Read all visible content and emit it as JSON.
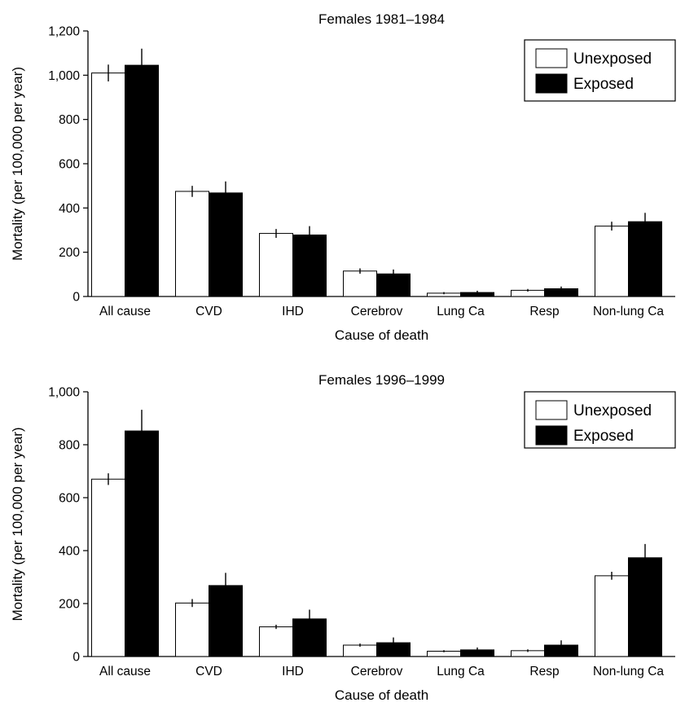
{
  "colors": {
    "unexposed": "#ffffff",
    "exposed": "#000000",
    "axis": "#000000"
  },
  "chart_data": [
    {
      "type": "bar",
      "title": "Females 1981–1984",
      "xlabel": "Cause of death",
      "ylabel": "Mortality (per 100,000 per year)",
      "ylim": [
        0,
        1200
      ],
      "yticks": [
        0,
        200,
        400,
        600,
        800,
        1000,
        1200
      ],
      "ytick_labels": [
        "0",
        "200",
        "400",
        "600",
        "800",
        "1,000",
        "1,200"
      ],
      "grid": false,
      "legend_position": "top-right",
      "categories": [
        "All cause",
        "CVD",
        "IHD",
        "Cerebrov",
        "Lung Ca",
        "Resp",
        "Non-lung Ca"
      ],
      "series": [
        {
          "name": "Unexposed",
          "values": [
            1010,
            475,
            285,
            115,
            15,
            28,
            318
          ],
          "error": [
            38,
            25,
            20,
            12,
            5,
            6,
            20
          ]
        },
        {
          "name": "Exposed",
          "values": [
            1045,
            468,
            278,
            102,
            18,
            35,
            338
          ],
          "error": [
            75,
            52,
            40,
            20,
            8,
            10,
            40
          ]
        }
      ]
    },
    {
      "type": "bar",
      "title": "Females 1996–1999",
      "xlabel": "Cause of death",
      "ylabel": "Mortality (per 100,000 per year)",
      "ylim": [
        0,
        1000
      ],
      "yticks": [
        0,
        200,
        400,
        600,
        800,
        1000
      ],
      "ytick_labels": [
        "0",
        "200",
        "400",
        "600",
        "800",
        "1,000"
      ],
      "grid": false,
      "legend_position": "top-right",
      "categories": [
        "All cause",
        "CVD",
        "IHD",
        "Cerebrov",
        "Lung Ca",
        "Resp",
        "Non-lung Ca"
      ],
      "series": [
        {
          "name": "Unexposed",
          "values": [
            670,
            202,
            112,
            43,
            20,
            22,
            305
          ],
          "error": [
            22,
            15,
            8,
            6,
            4,
            5,
            15
          ]
        },
        {
          "name": "Exposed",
          "values": [
            852,
            268,
            142,
            52,
            25,
            43,
            373
          ],
          "error": [
            80,
            48,
            35,
            20,
            9,
            18,
            52
          ]
        }
      ]
    }
  ]
}
